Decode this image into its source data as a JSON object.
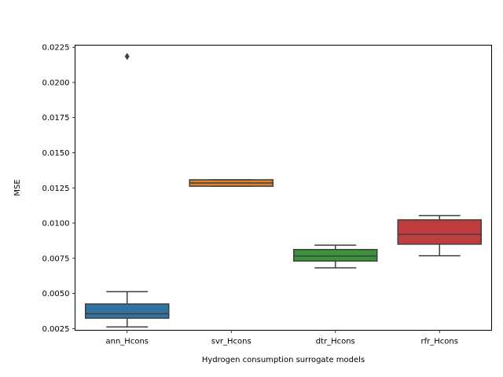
{
  "chart_data": {
    "type": "box",
    "xlabel": "Hydrogen consumption surrogate models",
    "ylabel": "MSE",
    "ylim": [
      0.00238,
      0.02265
    ],
    "yticks": [
      "0.0025",
      "0.0050",
      "0.0075",
      "0.0100",
      "0.0125",
      "0.0150",
      "0.0175",
      "0.0200",
      "0.0225"
    ],
    "categories": [
      "ann_Hcons",
      "svr_Hcons",
      "dtr_Hcons",
      "rfr_Hcons"
    ],
    "boxes": [
      {
        "name": "ann_Hcons",
        "color": "#3274a1",
        "whisker_low": 0.00262,
        "q1": 0.00324,
        "median": 0.00355,
        "q3": 0.00425,
        "whisker_high": 0.00512,
        "outliers": [
          0.02185
        ]
      },
      {
        "name": "svr_Hcons",
        "color": "#e1812c",
        "whisker_low": 0.01262,
        "q1": 0.01262,
        "median": 0.01285,
        "q3": 0.01308,
        "whisker_high": 0.01308,
        "outliers": []
      },
      {
        "name": "dtr_Hcons",
        "color": "#3a923a",
        "whisker_low": 0.00682,
        "q1": 0.0073,
        "median": 0.00766,
        "q3": 0.00812,
        "whisker_high": 0.00843,
        "outliers": []
      },
      {
        "name": "rfr_Hcons",
        "color": "#c03d3e",
        "whisker_low": 0.00768,
        "q1": 0.0085,
        "median": 0.0092,
        "q3": 0.01023,
        "whisker_high": 0.01053,
        "outliers": []
      }
    ]
  }
}
